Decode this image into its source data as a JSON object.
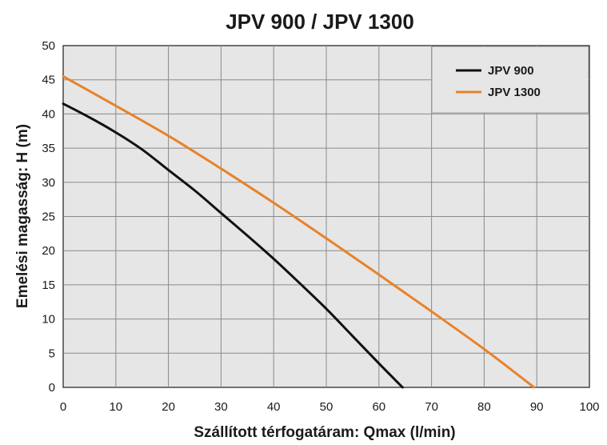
{
  "chart_data": {
    "type": "line",
    "title": "JPV 900 / JPV 1300",
    "xlabel": "Szállított térfogatáram: Qmax (l/min)",
    "ylabel": "Emelési magasság: H (m)",
    "xlim": [
      0,
      100
    ],
    "ylim": [
      0,
      50
    ],
    "x_ticks": [
      "0",
      "10",
      "20",
      "30",
      "40",
      "50",
      "60",
      "70",
      "80",
      "90",
      "100"
    ],
    "y_ticks": [
      "0",
      "5",
      "10",
      "15",
      "20",
      "25",
      "30",
      "35",
      "40",
      "45",
      "50"
    ],
    "grid": true,
    "legend_position": "top-right",
    "series": [
      {
        "name": "JPV 900",
        "color": "#111111",
        "x": [
          0,
          5,
          10,
          15,
          20,
          25,
          30,
          35,
          40,
          45,
          50,
          55,
          60,
          64.5
        ],
        "y": [
          41.5,
          39.5,
          37.3,
          34.8,
          31.8,
          28.8,
          25.5,
          22.2,
          18.8,
          15.2,
          11.5,
          7.5,
          3.5,
          0
        ]
      },
      {
        "name": "JPV 1300",
        "color": "#e8822a",
        "x": [
          0,
          10,
          20,
          30,
          40,
          50,
          60,
          70,
          80,
          89.5
        ],
        "y": [
          45.5,
          41.2,
          36.8,
          32.0,
          27.0,
          21.8,
          16.5,
          11.1,
          5.6,
          0
        ]
      }
    ]
  }
}
